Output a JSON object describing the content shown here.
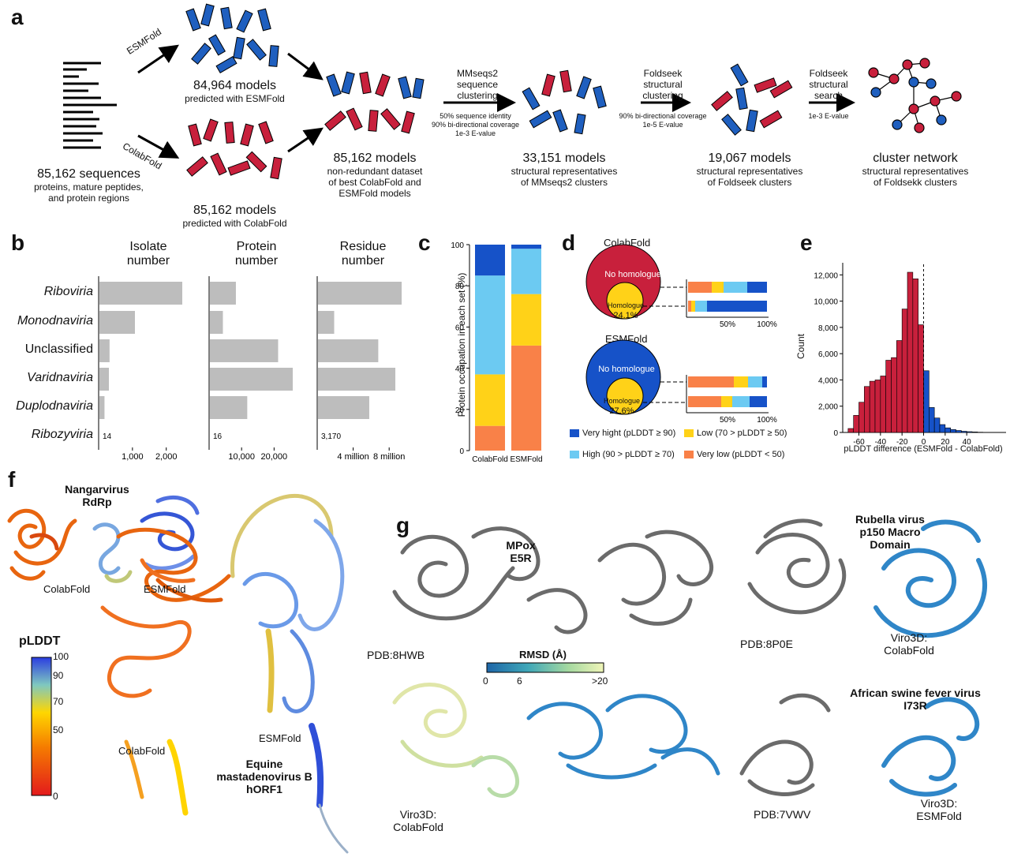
{
  "panels": {
    "a": "a",
    "b": "b",
    "c": "c",
    "d": "d",
    "e": "e",
    "f": "f",
    "g": "g"
  },
  "a": {
    "esmfold_arrow": "ESMFold",
    "colabfold_arrow": "ColabFold",
    "sequences_count": "85,162 sequences",
    "sequences_desc": "proteins, mature peptides,\nand protein regions",
    "esm_models_count": "84,964 models",
    "esm_models_desc": "predicted with ESMFold",
    "cf_models_count": "85,162 models",
    "cf_models_desc": "predicted with ColabFold",
    "nr_count": "85,162 models",
    "nr_desc": "non-redundant dataset\nof best ColabFold and\nESMFold models",
    "mmseqs_label": "MMseqs2\nsequence\nclustering",
    "mmseqs_params": "50% sequence identity\n90% bi-directional coverage\n1e-3 E-value",
    "mm_count": "33,151 models",
    "mm_desc": "structural representatives\nof MMseqs2 clusters",
    "fs_label": "Foldseek\nstructural\nclustering",
    "fs_params": "90% bi-directional coverage\n1e-5 E-value",
    "fs_count": "19,067 models",
    "fs_desc": "structural representatives\nof Foldseek clusters",
    "fss_label": "Foldseek\nstructural\nsearch",
    "fss_params": "1e-3 E-value",
    "net_count": "cluster network",
    "net_desc": "structural representatives\nof Foldsekk clusters"
  },
  "b": {
    "headers": [
      "Isolate\nnumber",
      "Protein\nnumber",
      "Residue\nnumber"
    ],
    "rows": [
      "Riboviria",
      "Monodnaviria",
      "Unclassified",
      "Varidnaviria",
      "Duplodnaviria",
      "Ribozyviria"
    ],
    "row_italic": [
      true,
      true,
      false,
      true,
      true,
      true
    ],
    "isolate_values": [
      2450,
      1050,
      300,
      280,
      150,
      14
    ],
    "protein_values": [
      8000,
      4000,
      21000,
      25500,
      11500,
      16
    ],
    "residue_values": [
      9300000,
      1800000,
      6700000,
      8600000,
      5700000,
      3170
    ],
    "ribozyviria_labels": [
      "14",
      "16",
      "3,170"
    ],
    "isolate_ticks": [
      "1,000",
      "2,000"
    ],
    "protein_ticks": [
      "10,000",
      "20,000"
    ],
    "residue_ticks": [
      "4 million",
      "8 million"
    ],
    "bar_color": "#bdbdbd"
  },
  "chart_data": [
    {
      "type": "bar",
      "panel": "c",
      "ylabel": "Protein occupation in each set (%)",
      "categories": [
        "ColabFold",
        "ESMFold"
      ],
      "ylim": [
        0,
        100
      ],
      "yticks": [
        "0",
        "20",
        "40",
        "60",
        "80",
        "100"
      ],
      "series": [
        {
          "name": "Very low (pLDDT < 50)",
          "color": "#f98148",
          "values": [
            12,
            51
          ]
        },
        {
          "name": "Low (70 > pLDDT ≥ 50)",
          "color": "#ffd218",
          "values": [
            25,
            25
          ]
        },
        {
          "name": "High (90 > pLDDT ≥ 70)",
          "color": "#6ccaf2",
          "values": [
            48,
            22
          ]
        },
        {
          "name": "Very hight (pLDDT ≥ 90)",
          "color": "#1652c8",
          "values": [
            15,
            2
          ]
        }
      ]
    },
    {
      "type": "bar",
      "panel": "e",
      "xlabel": "pLDDT difference (ESMFold - ColabFold)",
      "ylabel": "Count",
      "ylim": [
        0,
        12500
      ],
      "yticks": [
        "0",
        "2,000",
        "4,000",
        "6,000",
        "8,000",
        "10,000",
        "12,000"
      ],
      "xticks": [
        "-60",
        "-40",
        "-20",
        "0",
        "20",
        "40"
      ],
      "bin_width": 5,
      "bin_starts": [
        -70,
        -65,
        -60,
        -55,
        -50,
        -45,
        -40,
        -35,
        -30,
        -25,
        -20,
        -15,
        -10,
        -5,
        0,
        5,
        10,
        15,
        20,
        25,
        30,
        35,
        40,
        45,
        50
      ],
      "values": [
        300,
        1300,
        2300,
        3500,
        3900,
        4000,
        4300,
        5500,
        5700,
        7000,
        9400,
        12200,
        11700,
        8200,
        4700,
        1900,
        1100,
        600,
        350,
        220,
        150,
        90,
        60,
        40,
        20
      ],
      "neg_color": "#c8203c",
      "pos_color": "#1652c8"
    }
  ],
  "d": {
    "cf_title": "ColabFold",
    "esm_title": "ESMFold",
    "no_hom": "No homologue",
    "hom": "Homologue",
    "cf_pct": "24.1%",
    "esm_pct": "27.6%",
    "ticks": [
      "50%",
      "100%"
    ],
    "cf_top": [
      0.3,
      0.15,
      0.3,
      0.25
    ],
    "cf_bottom": [
      0.04,
      0.05,
      0.15,
      0.76
    ],
    "esm_top": [
      0.58,
      0.18,
      0.18,
      0.06
    ],
    "esm_bottom": [
      0.42,
      0.14,
      0.22,
      0.22
    ],
    "legend": [
      {
        "label": "Very hight (pLDDT ≥ 90)",
        "color": "#1652c8"
      },
      {
        "label": "Low (70 > pLDDT ≥ 50)",
        "color": "#ffd218"
      },
      {
        "label": "High (90 > pLDDT ≥ 70)",
        "color": "#6ccaf2"
      },
      {
        "label": "Very low (pLDDT < 50)",
        "color": "#f98148"
      }
    ],
    "circle_red": "#c8203c",
    "circle_blue": "#1652c8",
    "circle_yellow": "#ffd218"
  },
  "f": {
    "nangar": "Nangarvirus\nRdRp",
    "cf1": "ColabFold",
    "esm1": "ESMFold",
    "plddt": "pLDDT",
    "scale_ticks": [
      "100",
      "90",
      "70",
      "50",
      "0"
    ],
    "cf2": "ColabFold",
    "esm2": "ESMFold",
    "equine": "Equine\nmastadenovirus B\nhORF1"
  },
  "g": {
    "mpox": "MPox\nE5R",
    "pdb1": "PDB:8HWB",
    "rmsd": "RMSD (Å)",
    "rmsd_ticks": [
      "0",
      "6",
      ">20"
    ],
    "viro1": "Viro3D:\nColabFold",
    "rubella": "Rubella virus\np150 Macro\nDomain",
    "pdb2": "PDB:8P0E",
    "viro2": "Viro3D:\nColabFold",
    "asfv": "African swine fever virus\nI73R",
    "pdb3": "PDB:7VWV",
    "viro3": "Viro3D:\nESMFold"
  }
}
